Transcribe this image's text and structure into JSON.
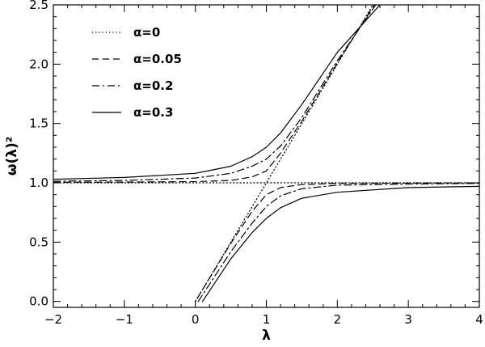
{
  "chart_data": {
    "type": "line",
    "title": "",
    "xlabel": "λ",
    "ylabel": "ω(λ)²",
    "xlim": [
      -2,
      4
    ],
    "ylim": [
      -0.05,
      2.5
    ],
    "grid": false,
    "legend_position": "top-left",
    "x_ticks": [
      {
        "value": -2,
        "label": "−2"
      },
      {
        "value": -1,
        "label": "−1"
      },
      {
        "value": 0,
        "label": "0"
      },
      {
        "value": 1,
        "label": "1"
      },
      {
        "value": 2,
        "label": "2"
      },
      {
        "value": 3,
        "label": "3"
      },
      {
        "value": 4,
        "label": "4"
      }
    ],
    "y_ticks": [
      {
        "value": 0.0,
        "label": "0.0"
      },
      {
        "value": 0.5,
        "label": "0.5"
      },
      {
        "value": 1.0,
        "label": "1.0"
      },
      {
        "value": 1.5,
        "label": "1.5"
      },
      {
        "value": 2.0,
        "label": "2.0"
      },
      {
        "value": 2.5,
        "label": "2.5"
      }
    ],
    "series": [
      {
        "name": "α=0",
        "alpha": 0,
        "line_style": "dotted",
        "branches": [
          {
            "x": [
              -2,
              4
            ],
            "y": [
              1,
              1
            ]
          },
          {
            "x": [
              0,
              2.5
            ],
            "y": [
              0,
              2.5
            ]
          }
        ]
      },
      {
        "name": "α=0.05",
        "alpha": 0.05,
        "line_style": "dashed",
        "branches": [
          {
            "x": [
              -2,
              -1,
              0,
              0.5,
              0.8,
              1.0,
              1.2,
              1.5,
              2.0,
              2.52
            ],
            "y": [
              1.004,
              1.006,
              1.01,
              1.02,
              1.05,
              1.1,
              1.25,
              1.52,
              2.01,
              2.5
            ]
          },
          {
            "x": [
              0.03,
              0.5,
              0.8,
              1.0,
              1.2,
              1.5,
              2.0,
              3.0,
              4.0
            ],
            "y": [
              0.03,
              0.49,
              0.76,
              0.9,
              0.96,
              0.985,
              0.995,
              0.998,
              0.999
            ]
          }
        ]
      },
      {
        "name": "α=0.2",
        "alpha": 0.2,
        "line_style": "dashdot",
        "branches": [
          {
            "x": [
              -2,
              -1,
              0,
              0.5,
              0.8,
              1.0,
              1.2,
              1.5,
              2.0,
              2.54
            ],
            "y": [
              1.013,
              1.02,
              1.04,
              1.08,
              1.14,
              1.2,
              1.31,
              1.55,
              2.03,
              2.5
            ]
          },
          {
            "x": [
              0.04,
              0.5,
              0.8,
              1.0,
              1.2,
              1.5,
              2.0,
              3.0,
              4.0
            ],
            "y": [
              0.0,
              0.42,
              0.66,
              0.8,
              0.89,
              0.95,
              0.98,
              0.99,
              0.995
            ]
          }
        ]
      },
      {
        "name": "α=0.3",
        "alpha": 0.3,
        "line_style": "solid",
        "branches": [
          {
            "x": [
              -2,
              -1,
              0,
              0.5,
              0.8,
              1.0,
              1.2,
              1.5,
              2.0,
              2.6
            ],
            "y": [
              1.03,
              1.045,
              1.08,
              1.14,
              1.22,
              1.3,
              1.42,
              1.66,
              2.1,
              2.5
            ]
          },
          {
            "x": [
              0.1,
              0.5,
              0.8,
              1.0,
              1.2,
              1.5,
              2.0,
              3.0,
              4.0
            ],
            "y": [
              0.0,
              0.36,
              0.58,
              0.7,
              0.79,
              0.87,
              0.92,
              0.96,
              0.97
            ]
          }
        ]
      }
    ]
  }
}
